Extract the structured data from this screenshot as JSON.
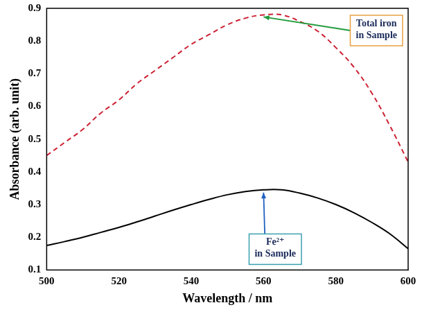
{
  "chart_data": {
    "type": "line",
    "x_label": "Wavelength / nm",
    "y_label": "Absorbance (arb. unit)",
    "xlim": [
      500,
      600
    ],
    "xticks": [
      500,
      520,
      540,
      560,
      580,
      600
    ],
    "ylim": [
      0.1,
      0.9
    ],
    "yticks": [
      0.1,
      0.2,
      0.3,
      0.4,
      0.5,
      0.6,
      0.7,
      0.8,
      0.9
    ],
    "grid": false,
    "x": [
      500,
      505,
      510,
      515,
      520,
      525,
      530,
      535,
      540,
      545,
      550,
      555,
      560,
      565,
      570,
      575,
      580,
      585,
      590,
      595,
      600
    ],
    "series": [
      {
        "name": "Total iron in Sample",
        "color": "#cc2233",
        "line_style": "dashed",
        "values": [
          0.45,
          0.49,
          0.53,
          0.58,
          0.62,
          0.67,
          0.71,
          0.75,
          0.79,
          0.82,
          0.85,
          0.87,
          0.88,
          0.88,
          0.86,
          0.83,
          0.78,
          0.72,
          0.64,
          0.54,
          0.43
        ]
      },
      {
        "name": "Fe²⁺ in Sample",
        "color": "#000000",
        "line_style": "solid",
        "values": [
          0.175,
          0.187,
          0.2,
          0.215,
          0.23,
          0.247,
          0.265,
          0.283,
          0.3,
          0.316,
          0.33,
          0.34,
          0.345,
          0.345,
          0.335,
          0.32,
          0.3,
          0.275,
          0.245,
          0.21,
          0.165
        ]
      }
    ],
    "annotations": [
      {
        "lines": [
          "Total iron",
          "in Sample"
        ],
        "series": 0
      },
      {
        "lines": [
          "Fe²⁺",
          "in Sample"
        ],
        "series": 1
      }
    ]
  }
}
